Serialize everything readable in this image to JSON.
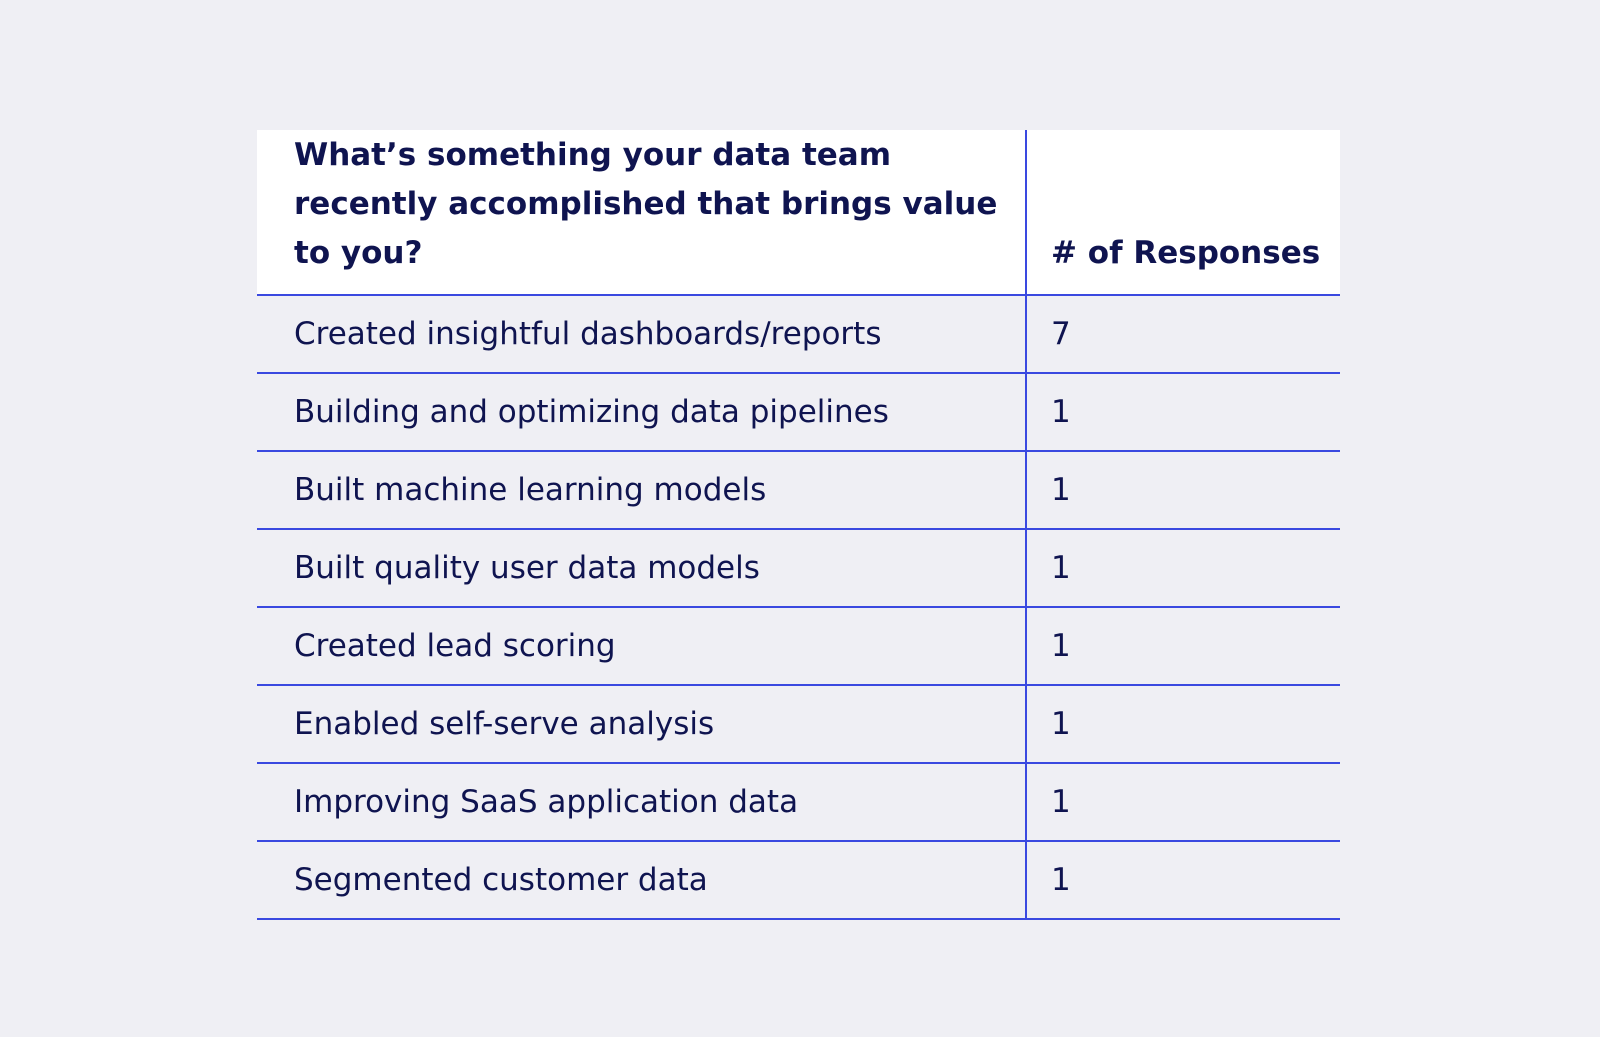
{
  "chart_data": {
    "type": "table",
    "columns": [
      "What’s something your data team recently accomplished that brings value to you?",
      "# of Responses"
    ],
    "rows": [
      {
        "label": "Created insightful dashboards/reports",
        "value": 7
      },
      {
        "label": "Building and optimizing data pipelines",
        "value": 1
      },
      {
        "label": "Built machine learning models",
        "value": 1
      },
      {
        "label": "Built quality user data models",
        "value": 1
      },
      {
        "label": "Created lead scoring",
        "value": 1
      },
      {
        "label": "Enabled self-serve analysis",
        "value": 1
      },
      {
        "label": "Improving SaaS application data",
        "value": 1
      },
      {
        "label": "Segmented customer data",
        "value": 1
      }
    ]
  },
  "colors": {
    "background": "#efeff4",
    "header_background": "#ffffff",
    "text": "#0f1450",
    "rule": "#3a49e0"
  }
}
